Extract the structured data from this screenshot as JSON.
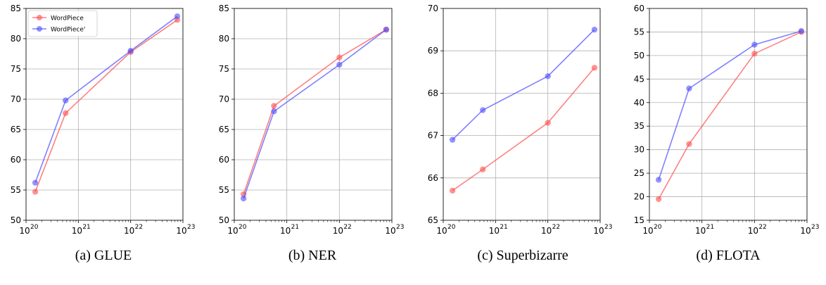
{
  "figure": {
    "colors": {
      "series_0": "#ff4c4c",
      "series_1": "#4c4cff"
    },
    "captions": [
      "(a) GLUE",
      "(b) NER",
      "(c) Superbizarre",
      "(d) FLOTA"
    ]
  },
  "chart_data": [
    {
      "type": "line",
      "x_scale": "log",
      "xlim": [
        1e+20,
        1e+23
      ],
      "ylim": [
        50,
        85
      ],
      "x_ticks": [
        "10",
        "10",
        "10",
        "10"
      ],
      "x_tick_exponents": [
        "20",
        "21",
        "22",
        "23"
      ],
      "y_ticks": [
        "50",
        "55",
        "60",
        "65",
        "70",
        "75",
        "80",
        "85"
      ],
      "grid": true,
      "legend": {
        "placement": "top-left",
        "entries": [
          "WordPiece",
          "WordPiece'"
        ]
      },
      "series": [
        {
          "name": "WordPiece",
          "x": [
            1.5e+20,
            5.7e+20,
            1e+22,
            7.8e+22
          ],
          "values": [
            54.7,
            67.7,
            77.8,
            83.1
          ]
        },
        {
          "name": "WordPiece'",
          "x": [
            1.5e+20,
            5.7e+20,
            1e+22,
            7.8e+22
          ],
          "values": [
            56.2,
            69.8,
            78.0,
            83.7
          ]
        }
      ]
    },
    {
      "type": "line",
      "x_scale": "log",
      "xlim": [
        1e+20,
        1e+23
      ],
      "ylim": [
        50,
        85
      ],
      "x_ticks": [
        "10",
        "10",
        "10",
        "10"
      ],
      "x_tick_exponents": [
        "20",
        "21",
        "22",
        "23"
      ],
      "y_ticks": [
        "50",
        "55",
        "60",
        "65",
        "70",
        "75",
        "80",
        "85"
      ],
      "grid": true,
      "series": [
        {
          "name": "WordPiece",
          "x": [
            1.5e+20,
            5.7e+20,
            1e+22,
            7.8e+22
          ],
          "values": [
            54.3,
            68.9,
            76.9,
            81.5
          ]
        },
        {
          "name": "WordPiece'",
          "x": [
            1.5e+20,
            5.7e+20,
            1e+22,
            7.8e+22
          ],
          "values": [
            53.6,
            68.0,
            75.7,
            81.5
          ]
        }
      ]
    },
    {
      "type": "line",
      "x_scale": "log",
      "xlim": [
        1e+20,
        1e+23
      ],
      "ylim": [
        65,
        70
      ],
      "x_ticks": [
        "10",
        "10",
        "10",
        "10"
      ],
      "x_tick_exponents": [
        "20",
        "21",
        "22",
        "23"
      ],
      "y_ticks": [
        "65",
        "66",
        "67",
        "68",
        "69",
        "70"
      ],
      "grid": true,
      "series": [
        {
          "name": "WordPiece",
          "x": [
            1.5e+20,
            5.7e+20,
            1e+22,
            7.8e+22
          ],
          "values": [
            65.7,
            66.2,
            67.3,
            68.6
          ]
        },
        {
          "name": "WordPiece'",
          "x": [
            1.5e+20,
            5.7e+20,
            1e+22,
            7.8e+22
          ],
          "values": [
            66.9,
            67.6,
            68.4,
            69.5
          ]
        }
      ]
    },
    {
      "type": "line",
      "x_scale": "log",
      "xlim": [
        1e+20,
        1e+23
      ],
      "ylim": [
        15,
        60
      ],
      "x_ticks": [
        "10",
        "10",
        "10",
        "10"
      ],
      "x_tick_exponents": [
        "20",
        "21",
        "22",
        "23"
      ],
      "y_ticks": [
        "15",
        "20",
        "25",
        "30",
        "35",
        "40",
        "45",
        "50",
        "55",
        "60"
      ],
      "grid": true,
      "series": [
        {
          "name": "WordPiece",
          "x": [
            1.5e+20,
            5.7e+20,
            1e+22,
            7.8e+22
          ],
          "values": [
            19.5,
            31.2,
            50.4,
            55.0
          ]
        },
        {
          "name": "WordPiece'",
          "x": [
            1.5e+20,
            5.7e+20,
            1e+22,
            7.8e+22
          ],
          "values": [
            23.6,
            43.0,
            52.3,
            55.2
          ]
        }
      ]
    }
  ]
}
